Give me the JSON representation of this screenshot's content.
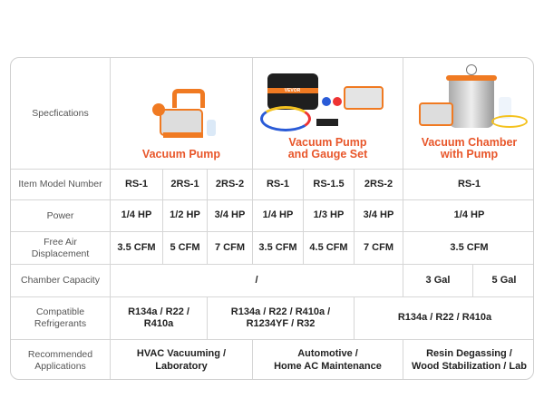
{
  "header": {
    "spec_label": "Specfications",
    "products": [
      {
        "title_line1": "Vacuum Pump",
        "title_line2": ""
      },
      {
        "title_line1": "Vacuum Pump",
        "title_line2": "and Gauge Set",
        "bag_logo": "VEVOR"
      },
      {
        "title_line1": "Vacuum Chamber",
        "title_line2": "with Pump"
      }
    ]
  },
  "rows": {
    "model": {
      "label": "Item Model Number",
      "values": [
        "RS-1",
        "2RS-1",
        "2RS-2",
        "RS-1",
        "RS-1.5",
        "2RS-2",
        "RS-1"
      ]
    },
    "power": {
      "label": "Power",
      "values": [
        "1/4 HP",
        "1/2 HP",
        "3/4 HP",
        "1/4 HP",
        "1/3 HP",
        "3/4 HP",
        "1/4 HP"
      ]
    },
    "cfm": {
      "label_line1": "Free Air",
      "label_line2": "Displacement",
      "values": [
        "3.5 CFM",
        "5 CFM",
        "7 CFM",
        "3.5 CFM",
        "4.5 CFM",
        "7 CFM",
        "3.5 CFM"
      ]
    },
    "chamber": {
      "label": "Chamber Capacity",
      "values": [
        "/",
        "3 Gal",
        "5 Gal"
      ]
    },
    "refrigerants": {
      "label_line1": "Compatible",
      "label_line2": "Refrigerants",
      "values": [
        [
          "R134a / R22 /",
          "R410a"
        ],
        [
          "R134a / R22 / R410a /",
          "R1234YF / R32"
        ],
        [
          "R134a / R22 / R410a",
          ""
        ]
      ]
    },
    "applications": {
      "label_line1": "Recommended",
      "label_line2": "Applications",
      "values": [
        [
          "HVAC Vacuuming /",
          "Laboratory"
        ],
        [
          "Automotive /",
          "Home AC Maintenance"
        ],
        [
          "Resin Degassing /",
          "Wood Stabilization / Lab"
        ]
      ]
    }
  },
  "colors": {
    "accent": "#e8562a",
    "border": "#d6d6d6",
    "pump_orange": "#f07a22"
  }
}
